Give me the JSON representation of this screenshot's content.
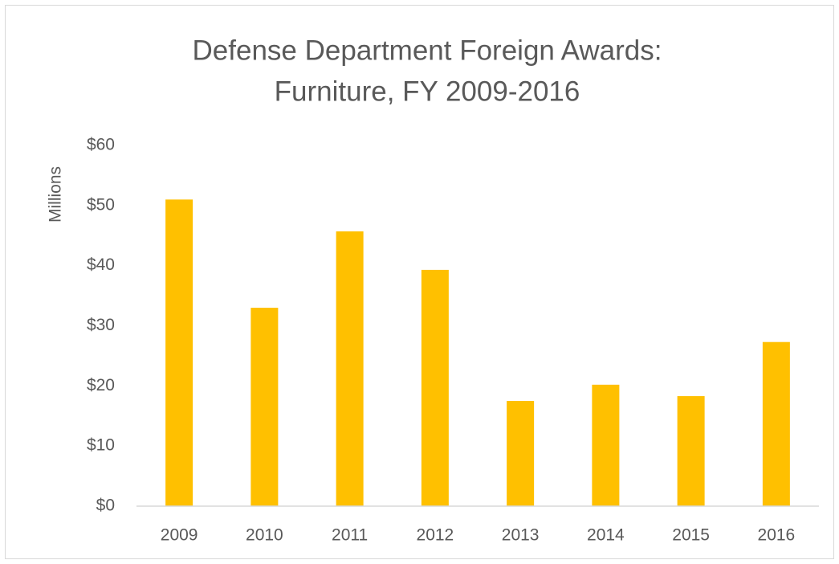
{
  "chart_data": {
    "type": "bar",
    "title": [
      "Defense Department Foreign Awards:",
      "Furniture, FY 2009-2016"
    ],
    "y_label": "Millions",
    "categories": [
      "2009",
      "2010",
      "2011",
      "2012",
      "2013",
      "2014",
      "2015",
      "2016"
    ],
    "values": [
      51,
      33,
      45.7,
      39.3,
      17.5,
      20.2,
      18.3,
      27.3
    ],
    "color": "#ffc000",
    "ylim": [
      0,
      60
    ],
    "yticks": [
      {
        "value": 0,
        "label": "$0"
      },
      {
        "value": 10,
        "label": "$10"
      },
      {
        "value": 20,
        "label": "$20"
      },
      {
        "value": 30,
        "label": "$30"
      },
      {
        "value": 40,
        "label": "$40"
      },
      {
        "value": 50,
        "label": "$50"
      },
      {
        "value": 60,
        "label": "$60"
      }
    ],
    "grid": false
  }
}
